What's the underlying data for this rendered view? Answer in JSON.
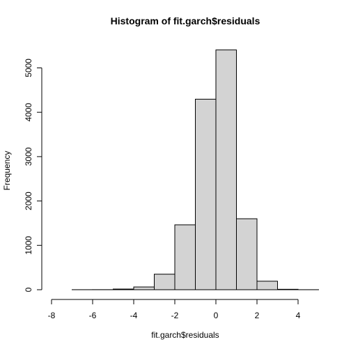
{
  "chart_data": {
    "type": "bar",
    "title": "Histogram of fit.garch$residuals",
    "xlabel": "fit.garch$residuals",
    "ylabel": "Frequency",
    "xlim": [
      -8,
      5
    ],
    "ylim": [
      0,
      5400
    ],
    "x_ticks": [
      -8,
      -6,
      -4,
      -2,
      0,
      2,
      4
    ],
    "y_ticks": [
      0,
      1000,
      2000,
      3000,
      4000,
      5000
    ],
    "bins": [
      {
        "start": -8,
        "end": -7,
        "count": 0
      },
      {
        "start": -7,
        "end": -6,
        "count": 1
      },
      {
        "start": -6,
        "end": -5,
        "count": 2
      },
      {
        "start": -5,
        "end": -4,
        "count": 15
      },
      {
        "start": -4,
        "end": -3,
        "count": 62
      },
      {
        "start": -3,
        "end": -2,
        "count": 350
      },
      {
        "start": -2,
        "end": -1,
        "count": 1462
      },
      {
        "start": -1,
        "end": 0,
        "count": 4295
      },
      {
        "start": 0,
        "end": 1,
        "count": 5405
      },
      {
        "start": 1,
        "end": 2,
        "count": 1600
      },
      {
        "start": 2,
        "end": 3,
        "count": 192
      },
      {
        "start": 3,
        "end": 4,
        "count": 10
      },
      {
        "start": 4,
        "end": 5,
        "count": 1
      }
    ],
    "grid": false,
    "colors": {
      "bar_fill": "#d3d3d3",
      "bar_stroke": "#000000"
    }
  }
}
